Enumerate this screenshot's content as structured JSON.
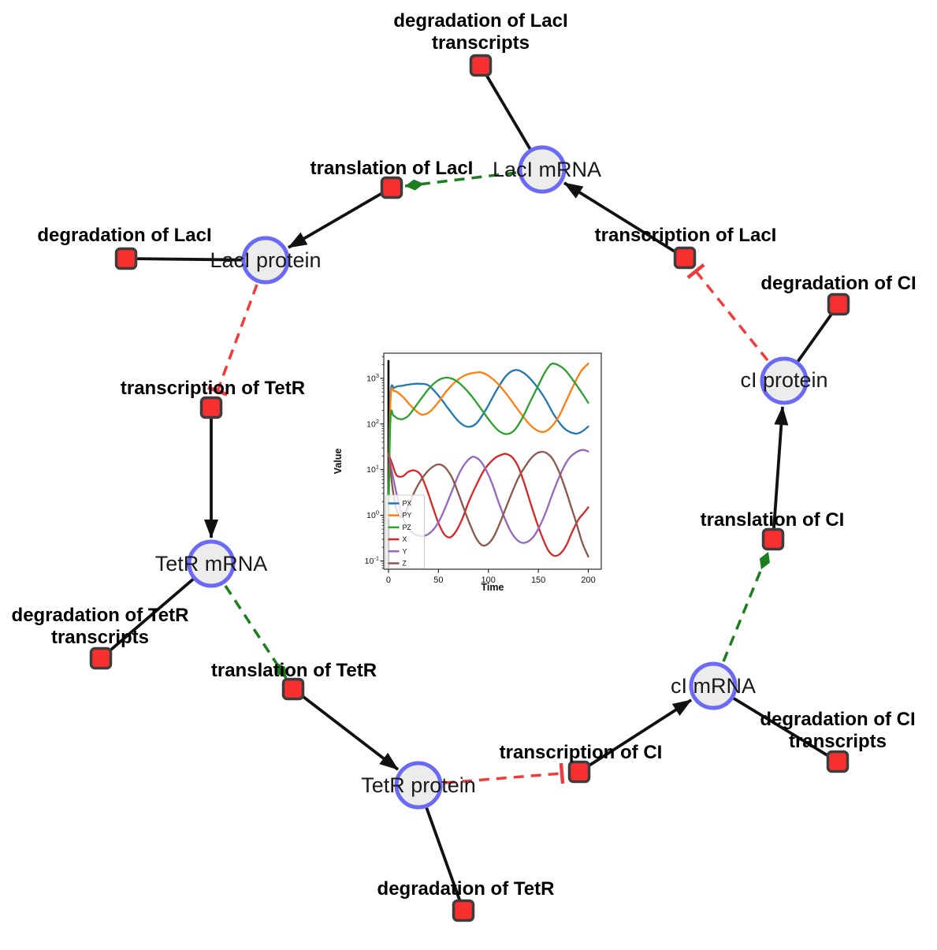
{
  "diagram": {
    "title": "repressilator gene regulatory network",
    "colors": {
      "species_fill": "#ececec",
      "species_border": "#6a6af7",
      "reaction_fill": "#f82f2f",
      "reaction_border": "#3d3d3d",
      "activation_edge": "#1e7d1e",
      "inhibition_edge": "#f23b3b",
      "plain_edge": "#111111",
      "background": "#ffffff"
    },
    "species": [
      {
        "id": "laci-mrna",
        "label": "LacI mRNA"
      },
      {
        "id": "laci-protein",
        "label": "LacI protein"
      },
      {
        "id": "tetr-mrna",
        "label": "TetR mRNA"
      },
      {
        "id": "tetr-protein",
        "label": "TetR protein"
      },
      {
        "id": "ci-mrna",
        "label": "cI mRNA"
      },
      {
        "id": "ci-protein",
        "label": "cI protein"
      }
    ],
    "reactions": [
      {
        "id": "degradation-of-laci-transcripts",
        "label_line1": "degradation of LacI",
        "label_line2": "transcripts"
      },
      {
        "id": "translation-of-laci",
        "label_line1": "translation of LacI"
      },
      {
        "id": "transcription-of-laci",
        "label_line1": "transcription of LacI"
      },
      {
        "id": "degradation-of-laci",
        "label_line1": "degradation of LacI"
      },
      {
        "id": "degradation-of-ci",
        "label_line1": "degradation of CI"
      },
      {
        "id": "transcription-of-tetr",
        "label_line1": "transcription of TetR"
      },
      {
        "id": "translation-of-ci",
        "label_line1": "translation of CI"
      },
      {
        "id": "degradation-of-tetr-transcripts",
        "label_line1": "degradation of TetR",
        "label_line2": "transcripts"
      },
      {
        "id": "translation-of-tetr",
        "label_line1": "translation of TetR"
      },
      {
        "id": "transcription-of-ci",
        "label_line1": "transcription of CI"
      },
      {
        "id": "degradation-of-ci-transcripts",
        "label_line1": "degradation of CI",
        "label_line2": "transcripts"
      },
      {
        "id": "degradation-of-tetr",
        "label_line1": "degradation of TetR"
      }
    ]
  },
  "chart_data": {
    "type": "line",
    "title": "",
    "xlabel": "Time",
    "ylabel": "Value",
    "x_ticks": [
      0,
      50,
      100,
      150,
      200
    ],
    "y_tick_exponents": [
      -1,
      0,
      1,
      2,
      3
    ],
    "xlim": [
      -4.7,
      213
    ],
    "ylog_lim": [
      -1.18,
      3.55
    ],
    "y_scale": "log",
    "grid": false,
    "legend_position": "lower left",
    "t0_marker": {
      "x": 0,
      "top_value": 2500
    },
    "series": [
      {
        "name": "PX",
        "color": "#1f77b4",
        "points": [
          [
            0,
            0.9
          ],
          [
            2,
            380
          ],
          [
            6,
            620
          ],
          [
            14,
            690
          ],
          [
            24,
            750
          ],
          [
            32,
            760
          ],
          [
            40,
            700
          ],
          [
            50,
            420
          ],
          [
            60,
            215
          ],
          [
            70,
            115
          ],
          [
            79,
            87
          ],
          [
            88,
            103
          ],
          [
            98,
            215
          ],
          [
            108,
            540
          ],
          [
            118,
            1150
          ],
          [
            127,
            1520
          ],
          [
            136,
            1280
          ],
          [
            146,
            770
          ],
          [
            156,
            380
          ],
          [
            166,
            155
          ],
          [
            176,
            80
          ],
          [
            186,
            62
          ],
          [
            193,
            67
          ],
          [
            200,
            88
          ]
        ]
      },
      {
        "name": "PY",
        "color": "#ff7f0e",
        "points": [
          [
            0,
            0.9
          ],
          [
            2,
            330
          ],
          [
            6,
            520
          ],
          [
            14,
            400
          ],
          [
            22,
            255
          ],
          [
            30,
            175
          ],
          [
            35,
            160
          ],
          [
            42,
            190
          ],
          [
            50,
            300
          ],
          [
            58,
            520
          ],
          [
            68,
            880
          ],
          [
            78,
            1200
          ],
          [
            88,
            1340
          ],
          [
            93,
            1340
          ],
          [
            100,
            1140
          ],
          [
            110,
            740
          ],
          [
            120,
            400
          ],
          [
            130,
            200
          ],
          [
            140,
            105
          ],
          [
            148,
            74
          ],
          [
            155,
            67
          ],
          [
            162,
            82
          ],
          [
            170,
            140
          ],
          [
            178,
            320
          ],
          [
            186,
            760
          ],
          [
            193,
            1450
          ],
          [
            200,
            2100
          ]
        ]
      },
      {
        "name": "PZ",
        "color": "#2ca02c",
        "points": [
          [
            0,
            0.9
          ],
          [
            2,
            130
          ],
          [
            5,
            152
          ],
          [
            9,
            132
          ],
          [
            14,
            128
          ],
          [
            20,
            152
          ],
          [
            26,
            225
          ],
          [
            34,
            390
          ],
          [
            42,
            650
          ],
          [
            50,
            910
          ],
          [
            57,
            1030
          ],
          [
            64,
            975
          ],
          [
            72,
            750
          ],
          [
            82,
            440
          ],
          [
            92,
            225
          ],
          [
            102,
            112
          ],
          [
            110,
            72
          ],
          [
            118,
            60
          ],
          [
            126,
            73
          ],
          [
            134,
            135
          ],
          [
            142,
            310
          ],
          [
            150,
            700
          ],
          [
            157,
            1400
          ],
          [
            163,
            2050
          ],
          [
            170,
            1940
          ],
          [
            178,
            1420
          ],
          [
            188,
            720
          ],
          [
            195,
            430
          ],
          [
            200,
            290
          ]
        ]
      },
      {
        "name": "X",
        "color": "#d62728",
        "points": [
          [
            0,
            22
          ],
          [
            4,
            13
          ],
          [
            8,
            7.6
          ],
          [
            14,
            7.1
          ],
          [
            20,
            9
          ],
          [
            26,
            9.6
          ],
          [
            32,
            7.8
          ],
          [
            38,
            3.9
          ],
          [
            44,
            1.6
          ],
          [
            50,
            0.68
          ],
          [
            56,
            0.38
          ],
          [
            62,
            0.33
          ],
          [
            68,
            0.46
          ],
          [
            74,
            0.85
          ],
          [
            80,
            1.9
          ],
          [
            88,
            4.6
          ],
          [
            96,
            10
          ],
          [
            106,
            17.5
          ],
          [
            114,
            21.5
          ],
          [
            118,
            22
          ],
          [
            124,
            18.5
          ],
          [
            130,
            11.5
          ],
          [
            136,
            5
          ],
          [
            142,
            1.9
          ],
          [
            148,
            0.75
          ],
          [
            154,
            0.33
          ],
          [
            160,
            0.17
          ],
          [
            166,
            0.13
          ],
          [
            172,
            0.145
          ],
          [
            178,
            0.22
          ],
          [
            184,
            0.44
          ],
          [
            190,
            0.8
          ],
          [
            196,
            1.15
          ],
          [
            200,
            1.5
          ]
        ]
      },
      {
        "name": "Y",
        "color": "#9467bd",
        "points": [
          [
            0,
            22
          ],
          [
            4,
            8
          ],
          [
            8,
            3
          ],
          [
            12,
            1.3
          ],
          [
            16,
            0.72
          ],
          [
            22,
            0.45
          ],
          [
            28,
            0.37
          ],
          [
            34,
            0.35
          ],
          [
            40,
            0.39
          ],
          [
            46,
            0.52
          ],
          [
            52,
            0.85
          ],
          [
            58,
            1.7
          ],
          [
            64,
            3.6
          ],
          [
            70,
            7.6
          ],
          [
            76,
            13
          ],
          [
            82,
            18
          ],
          [
            86,
            19
          ],
          [
            92,
            15.5
          ],
          [
            98,
            9.5
          ],
          [
            104,
            4.8
          ],
          [
            110,
            2
          ],
          [
            116,
            0.9
          ],
          [
            122,
            0.46
          ],
          [
            128,
            0.3
          ],
          [
            134,
            0.25
          ],
          [
            140,
            0.27
          ],
          [
            146,
            0.36
          ],
          [
            152,
            0.62
          ],
          [
            158,
            1.25
          ],
          [
            164,
            2.9
          ],
          [
            170,
            6.2
          ],
          [
            176,
            12
          ],
          [
            182,
            19
          ],
          [
            190,
            25.5
          ],
          [
            195,
            27
          ],
          [
            200,
            25
          ]
        ]
      },
      {
        "name": "Z",
        "color": "#8c564b",
        "points": [
          [
            0,
            22
          ],
          [
            3,
            6
          ],
          [
            6,
            2.1
          ],
          [
            9,
            1.15
          ],
          [
            12,
            0.92
          ],
          [
            16,
            1.1
          ],
          [
            20,
            1.6
          ],
          [
            24,
            2.6
          ],
          [
            28,
            4
          ],
          [
            34,
            6.6
          ],
          [
            40,
            9.6
          ],
          [
            46,
            12.2
          ],
          [
            50,
            13
          ],
          [
            54,
            12.4
          ],
          [
            58,
            10.4
          ],
          [
            64,
            6.4
          ],
          [
            70,
            3
          ],
          [
            76,
            1.3
          ],
          [
            82,
            0.6
          ],
          [
            88,
            0.31
          ],
          [
            94,
            0.22
          ],
          [
            100,
            0.24
          ],
          [
            106,
            0.36
          ],
          [
            112,
            0.72
          ],
          [
            118,
            1.55
          ],
          [
            124,
            3.3
          ],
          [
            130,
            6.6
          ],
          [
            136,
            11
          ],
          [
            142,
            17
          ],
          [
            148,
            22.5
          ],
          [
            153,
            24.5
          ],
          [
            158,
            23.2
          ],
          [
            164,
            17.5
          ],
          [
            170,
            9.8
          ],
          [
            176,
            4.4
          ],
          [
            182,
            1.75
          ],
          [
            188,
            0.68
          ],
          [
            194,
            0.25
          ],
          [
            200,
            0.125
          ]
        ]
      }
    ]
  }
}
